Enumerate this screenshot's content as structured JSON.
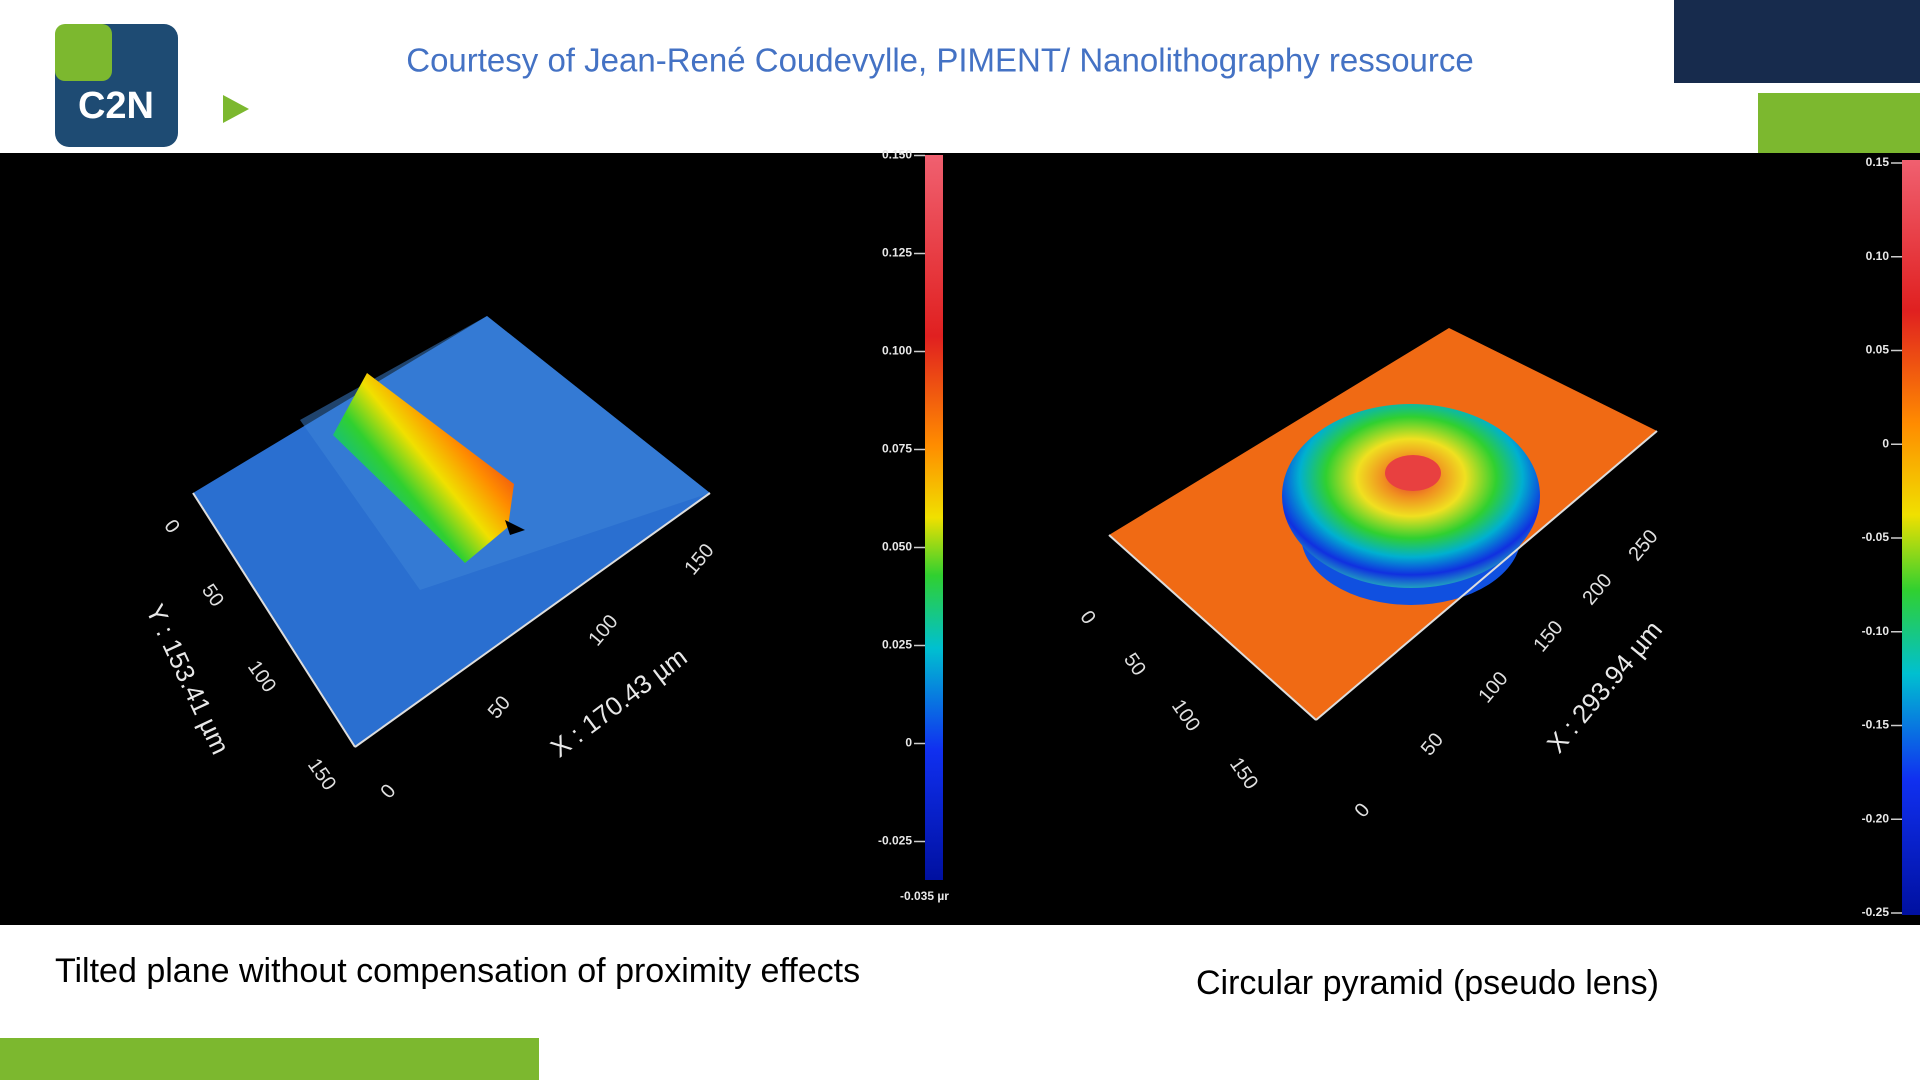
{
  "header": {
    "logo": "C2N",
    "title": "Courtesy of Jean-René Coudevylle, PIMENT/ Nanolithography ressource"
  },
  "panels": [
    {
      "caption": "Tilted plane without compensation of proximity effects",
      "colorbar": {
        "lim": [
          -0.035,
          0.15
        ],
        "ticks": [
          {
            "value": 0.15,
            "label": "0.150"
          },
          0.125,
          {
            "value": 0.1,
            "label": "0.100"
          },
          0.075,
          {
            "value": 0.05,
            "label": "0.050"
          },
          0.025,
          0,
          -0.025
        ],
        "min_label": "-0.035 µr"
      },
      "axes": {
        "x_label": "X : 170.43 µm",
        "y_label": "Y : 153.41 µm",
        "x_ticks": [
          0,
          50,
          100,
          150
        ],
        "y_ticks": [
          0,
          50,
          100,
          150
        ]
      }
    },
    {
      "caption": "Circular pyramid (pseudo lens)",
      "colorbar": {
        "lim": [
          -0.25,
          0.15
        ],
        "ticks": [
          0.15,
          {
            "value": 0.1,
            "label": "0.10"
          },
          0.05,
          0,
          -0.05,
          {
            "value": -0.1,
            "label": "-0.10"
          },
          -0.15,
          {
            "value": -0.2,
            "label": "-0.20"
          },
          -0.25
        ]
      },
      "axes": {
        "x_label": "X : 293.94 µm",
        "x_ticks": [
          0,
          50,
          100,
          150,
          200,
          250
        ],
        "y_ticks": [
          0,
          50,
          100,
          150
        ]
      }
    }
  ]
}
